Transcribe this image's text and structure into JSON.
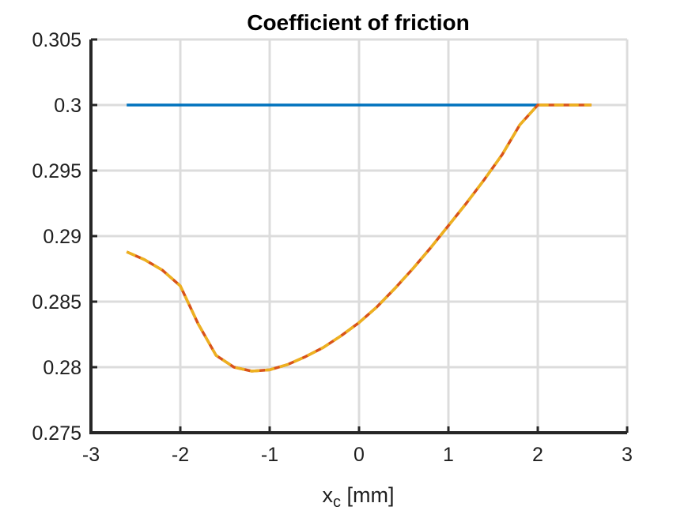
{
  "chart_data": {
    "type": "line",
    "title": "Coefficient of friction",
    "xlabel": {
      "main": "x",
      "sub": "c",
      "unit": " [mm]"
    },
    "ylabel": "",
    "xlim": [
      -3,
      3
    ],
    "ylim": [
      0.275,
      0.305
    ],
    "xticks": [
      -3,
      -2,
      -1,
      0,
      1,
      2,
      3
    ],
    "xtick_labels": [
      "-3",
      "-2",
      "-1",
      "0",
      "1",
      "2",
      "3"
    ],
    "yticks": [
      0.275,
      0.28,
      0.285,
      0.29,
      0.295,
      0.3,
      0.305
    ],
    "ytick_labels": [
      "0.275",
      "0.28",
      "0.285",
      "0.29",
      "0.295",
      "0.3",
      "0.305"
    ],
    "grid": true,
    "series": [
      {
        "color": "#0072bd",
        "style": "solid",
        "x": [
          -2.6,
          2.0
        ],
        "y": [
          0.3,
          0.3
        ]
      },
      {
        "color": "#d95319",
        "style": "solid",
        "x": [
          -2.6,
          -2.4,
          -2.2,
          -2.0,
          -1.8,
          -1.6,
          -1.4,
          -1.2,
          -1.0,
          -0.8,
          -0.6,
          -0.4,
          -0.2,
          0.0,
          0.2,
          0.4,
          0.6,
          0.8,
          1.0,
          1.2,
          1.4,
          1.6,
          1.8,
          2.0,
          2.2,
          2.4,
          2.6
        ],
        "y": [
          0.2888,
          0.2882,
          0.2874,
          0.2862,
          0.2833,
          0.2809,
          0.28,
          0.2797,
          0.2798,
          0.2802,
          0.2808,
          0.2815,
          0.2824,
          0.2834,
          0.2846,
          0.286,
          0.2875,
          0.2891,
          0.2908,
          0.2925,
          0.2943,
          0.2962,
          0.2985,
          0.3,
          0.3,
          0.3,
          0.3
        ]
      },
      {
        "color": "#edb120",
        "style": "dashed",
        "x": [
          -2.6,
          -2.4,
          -2.2,
          -2.0,
          -1.8,
          -1.6,
          -1.4,
          -1.2,
          -1.0,
          -0.8,
          -0.6,
          -0.4,
          -0.2,
          0.0,
          0.2,
          0.4,
          0.6,
          0.8,
          1.0,
          1.2,
          1.4,
          1.6,
          1.8,
          2.0,
          2.2,
          2.4,
          2.6
        ],
        "y": [
          0.2888,
          0.2882,
          0.2874,
          0.2862,
          0.2833,
          0.2809,
          0.28,
          0.2797,
          0.2798,
          0.2802,
          0.2808,
          0.2815,
          0.2824,
          0.2834,
          0.2846,
          0.286,
          0.2875,
          0.2891,
          0.2908,
          0.2925,
          0.2943,
          0.2962,
          0.2985,
          0.3,
          0.3,
          0.3,
          0.3
        ]
      }
    ]
  }
}
